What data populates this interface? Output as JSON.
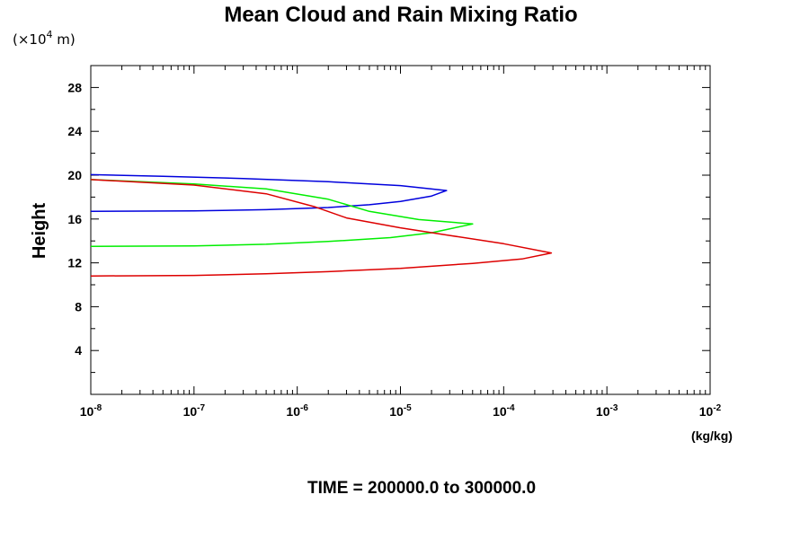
{
  "chart_data": {
    "type": "line",
    "title": "Mean Cloud and Rain Mixing Ratio",
    "ylabel": "Height",
    "y_unit_prefix": "(×10",
    "y_unit_exponent": "4",
    "y_unit_suffix": " m)",
    "xunit": "(kg/kg)",
    "footer": "TIME = 200000.0 to 300000.0",
    "xscale": "log",
    "xlim": [
      1e-08,
      0.01
    ],
    "ylim": [
      0,
      30
    ],
    "x_tick_labels": [
      {
        "base": "10",
        "exp": "-8"
      },
      {
        "base": "10",
        "exp": "-7"
      },
      {
        "base": "10",
        "exp": "-6"
      },
      {
        "base": "10",
        "exp": "-5"
      },
      {
        "base": "10",
        "exp": "-4"
      },
      {
        "base": "10",
        "exp": "-3"
      },
      {
        "base": "10",
        "exp": "-2"
      }
    ],
    "x_tick_values": [
      1e-08,
      1e-07,
      1e-06,
      1e-05,
      0.0001,
      0.001,
      0.01
    ],
    "y_ticks": [
      4,
      8,
      12,
      16,
      20,
      24,
      28
    ],
    "y_tick_labels": [
      "4",
      "8",
      "12",
      "16",
      "20",
      "24",
      "28"
    ],
    "grid": false,
    "series": [
      {
        "color": "#0000dd",
        "points": [
          [
            1e-08,
            16.7
          ],
          [
            1e-07,
            16.75
          ],
          [
            5e-07,
            16.85
          ],
          [
            2e-06,
            17.05
          ],
          [
            5e-06,
            17.3
          ],
          [
            1e-05,
            17.6
          ],
          [
            2e-05,
            18.1
          ],
          [
            2.8e-05,
            18.6
          ],
          [
            1e-05,
            19.05
          ],
          [
            2e-06,
            19.4
          ],
          [
            3e-07,
            19.7
          ],
          [
            5e-08,
            19.9
          ],
          [
            1e-08,
            20.05
          ]
        ]
      },
      {
        "color": "#00ee00",
        "points": [
          [
            1e-08,
            13.5
          ],
          [
            1e-07,
            13.55
          ],
          [
            5e-07,
            13.7
          ],
          [
            2e-06,
            13.95
          ],
          [
            8e-06,
            14.3
          ],
          [
            2e-05,
            14.75
          ],
          [
            5e-05,
            15.55
          ],
          [
            1.5e-05,
            15.95
          ],
          [
            5e-06,
            16.7
          ],
          [
            2e-06,
            17.8
          ],
          [
            5e-07,
            18.75
          ],
          [
            1e-07,
            19.2
          ],
          [
            1e-08,
            19.6
          ]
        ]
      },
      {
        "color": "#dd0000",
        "points": [
          [
            1e-08,
            10.8
          ],
          [
            1e-07,
            10.85
          ],
          [
            5e-07,
            11.0
          ],
          [
            2e-06,
            11.2
          ],
          [
            1e-05,
            11.5
          ],
          [
            5e-05,
            11.95
          ],
          [
            0.00015,
            12.35
          ],
          [
            0.00029,
            12.9
          ],
          [
            0.0001,
            13.75
          ],
          [
            3e-05,
            14.5
          ],
          [
            1e-05,
            15.2
          ],
          [
            3e-06,
            16.1
          ],
          [
            1.5e-06,
            17.1
          ],
          [
            5e-07,
            18.3
          ],
          [
            1e-07,
            19.1
          ],
          [
            1e-08,
            19.6
          ]
        ]
      }
    ]
  }
}
